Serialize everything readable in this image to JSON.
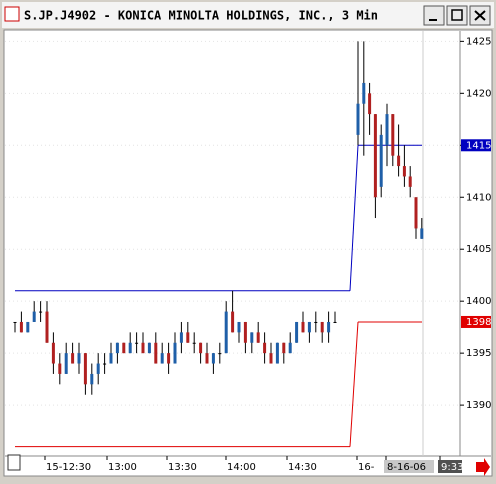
{
  "chart_data": {
    "type": "candlestick",
    "title": "S.JP.J4902 - KONICA MINOLTA HOLDINGS, INC., 3 Min",
    "open": [
      1398,
      1398,
      1397,
      1398,
      1399,
      1399,
      1396,
      1394,
      1393,
      1395,
      1394,
      1395,
      1392,
      1393,
      1394,
      1394,
      1395,
      1396,
      1395,
      1396,
      1396,
      1395,
      1396,
      1394,
      1395,
      1394,
      1396,
      1397,
      1396,
      1396,
      1395,
      1394,
      1395,
      1395,
      1399,
      1397,
      1398,
      1396,
      1397,
      1396,
      1395,
      1394,
      1396,
      1395,
      1396,
      1398,
      1397,
      1398,
      1398,
      1397,
      1398,
      1416,
      1419,
      1420,
      1418,
      1411,
      1415,
      1418,
      1414,
      1413,
      1412,
      1410,
      1406
    ],
    "high": [
      1398,
      1399,
      1398,
      1400,
      1400,
      1400,
      1397,
      1395,
      1396,
      1396,
      1396,
      1395,
      1394,
      1395,
      1395,
      1396,
      1396,
      1396,
      1397,
      1397,
      1397,
      1396,
      1397,
      1396,
      1396,
      1397,
      1398,
      1398,
      1397,
      1396,
      1396,
      1395,
      1396,
      1400,
      1401,
      1398,
      1398,
      1397,
      1398,
      1397,
      1396,
      1396,
      1396,
      1397,
      1398,
      1399,
      1398,
      1399,
      1398,
      1399,
      1399,
      1425,
      1425,
      1421,
      1418,
      1417,
      1419,
      1418,
      1417,
      1415,
      1413,
      1410,
      1408
    ],
    "low": [
      1397,
      1397,
      1397,
      1398,
      1398,
      1396,
      1393,
      1392,
      1393,
      1394,
      1393,
      1391,
      1391,
      1392,
      1393,
      1394,
      1394,
      1395,
      1395,
      1395,
      1395,
      1395,
      1394,
      1394,
      1393,
      1394,
      1395,
      1396,
      1395,
      1394,
      1394,
      1393,
      1394,
      1395,
      1397,
      1396,
      1395,
      1395,
      1396,
      1394,
      1394,
      1394,
      1394,
      1395,
      1396,
      1397,
      1396,
      1397,
      1396,
      1396,
      1398,
      1415,
      1414,
      1416,
      1408,
      1410,
      1413,
      1413,
      1412,
      1411,
      1410,
      1406,
      1406
    ],
    "close": [
      1398,
      1397,
      1398,
      1399,
      1399,
      1396,
      1394,
      1393,
      1395,
      1394,
      1395,
      1392,
      1393,
      1394,
      1394,
      1395,
      1396,
      1395,
      1396,
      1396,
      1395,
      1396,
      1394,
      1395,
      1394,
      1396,
      1397,
      1396,
      1396,
      1395,
      1394,
      1395,
      1395,
      1399,
      1397,
      1398,
      1396,
      1397,
      1396,
      1395,
      1394,
      1396,
      1395,
      1396,
      1398,
      1397,
      1398,
      1398,
      1397,
      1398,
      1398,
      1419,
      1421,
      1418,
      1410,
      1416,
      1418,
      1414,
      1413,
      1412,
      1411,
      1407,
      1407
    ],
    "up_color": "#1f5fa8",
    "down_color": "#b02020",
    "lines": [
      {
        "color": "#0000c0",
        "values": [
          1401,
          1415
        ]
      },
      {
        "color": "#e00000",
        "values": [
          1386,
          1398
        ]
      }
    ],
    "ylim": [
      1385.2,
      1425.9
    ],
    "yticks": [
      1390,
      1395,
      1400,
      1405,
      1410,
      1415,
      1420,
      1425
    ],
    "xtick_labels": [
      "15-12:30",
      "13:00",
      "13:30",
      "14:00",
      "14:30",
      "16-",
      "8-16-06",
      "9:33"
    ]
  }
}
